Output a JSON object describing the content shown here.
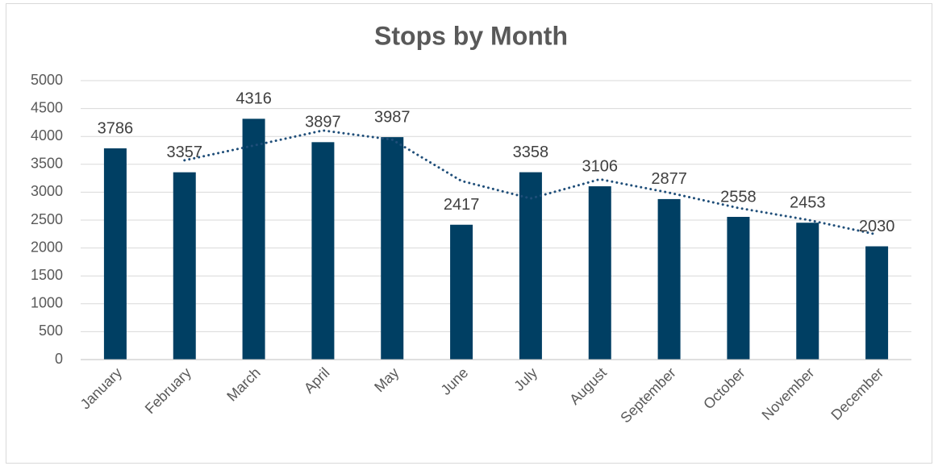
{
  "chart_data": {
    "type": "bar",
    "title": "Stops by Month",
    "categories": [
      "January",
      "February",
      "March",
      "April",
      "May",
      "June",
      "July",
      "August",
      "September",
      "October",
      "November",
      "December"
    ],
    "values": [
      3786,
      3357,
      4316,
      3897,
      3987,
      2417,
      3358,
      3106,
      2877,
      2558,
      2453,
      2030
    ],
    "color": "#003f63",
    "trendline": {
      "values": [
        null,
        3571.5,
        3836.5,
        4106.5,
        3942,
        3202,
        2887.5,
        3232,
        2991.5,
        2717.5,
        2505.5,
        2241.5
      ],
      "color": "#1f4e79"
    },
    "ylim": [
      0,
      5000
    ],
    "yticks": [
      0,
      500,
      1000,
      1500,
      2000,
      2500,
      3000,
      3500,
      4000,
      4500,
      5000
    ],
    "grid": true
  }
}
